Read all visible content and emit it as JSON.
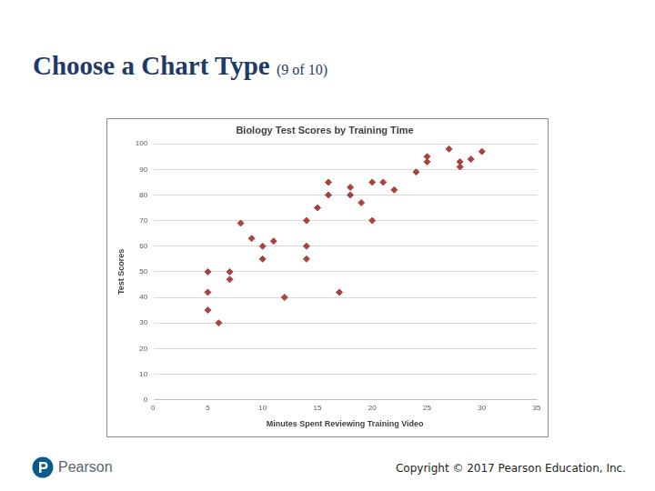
{
  "slide": {
    "title": "Choose a Chart Type",
    "subtitle": "(9 of 10)",
    "logo": "Pearson",
    "copyright": "Copyright © 2017 Pearson Education, Inc."
  },
  "chart_data": {
    "type": "scatter",
    "title": "Biology Test Scores by Training Time",
    "x_label": "Minutes Spent Reviewing Training Video",
    "y_label": "Test Scores",
    "x": [
      5,
      5,
      5,
      6,
      7,
      7,
      8,
      9,
      10,
      10,
      11,
      12,
      14,
      14,
      14,
      15,
      16,
      16,
      17,
      18,
      18,
      19,
      20,
      20,
      21,
      22,
      24,
      25,
      25,
      27,
      28,
      28,
      29,
      30
    ],
    "values": [
      50,
      42,
      35,
      30,
      50,
      47,
      69,
      63,
      60,
      55,
      62,
      40,
      70,
      60,
      55,
      75,
      85,
      80,
      42,
      83,
      80,
      77,
      85,
      70,
      85,
      82,
      89,
      95,
      93,
      98,
      93,
      91,
      94,
      97
    ],
    "color": "#a9433f",
    "marker": "diamond",
    "xlim": [
      0,
      35
    ],
    "xticks": [
      0,
      5,
      10,
      15,
      20,
      25,
      30,
      35
    ],
    "ylim": [
      0,
      100
    ],
    "yticks": [
      0,
      10,
      20,
      30,
      40,
      50,
      60,
      70,
      80,
      90,
      100
    ],
    "grid": "y"
  }
}
